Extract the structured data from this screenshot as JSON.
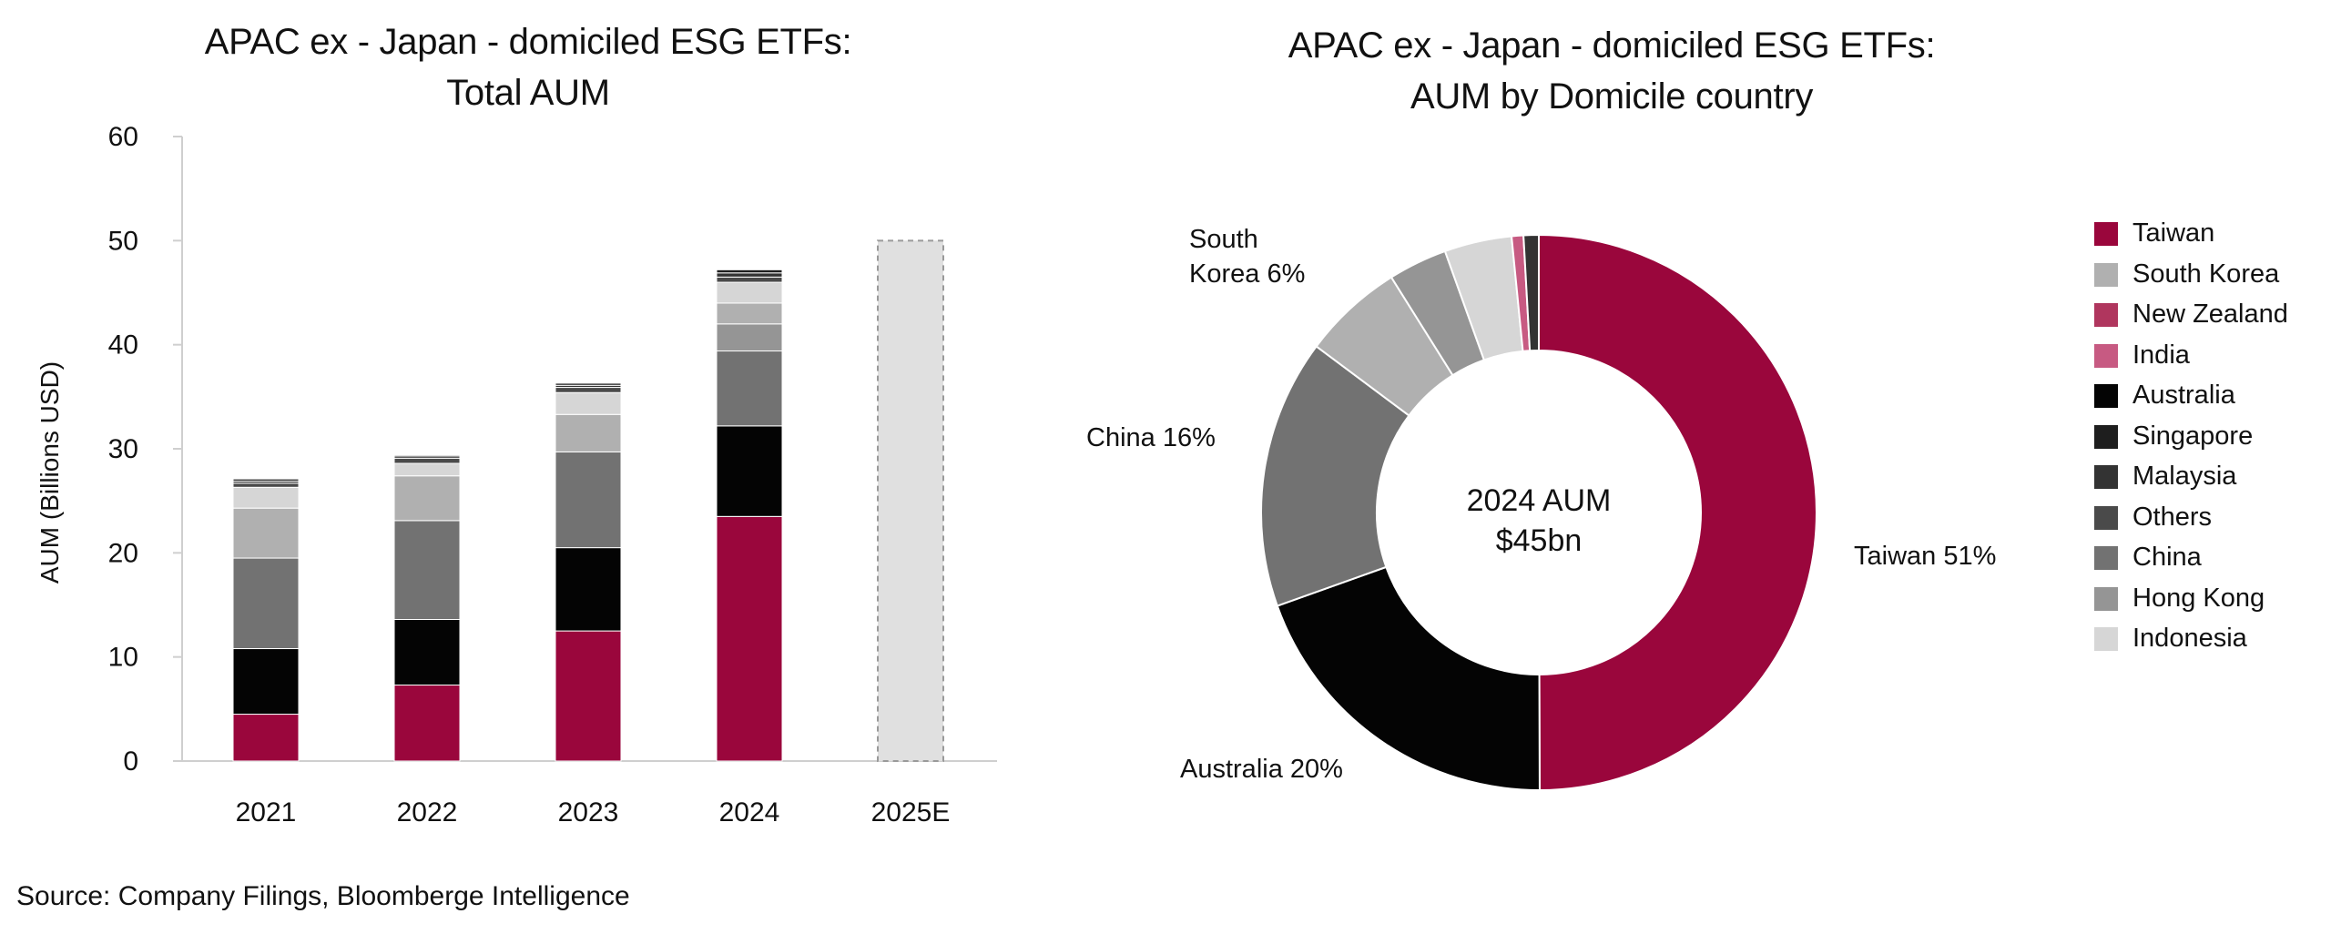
{
  "source": "Source: Company Filings, Bloomberge Intelligence",
  "colors": {
    "Taiwan": "#9a063c",
    "South Korea": "#b0b0b0",
    "New Zealand": "#b0365e",
    "India": "#c75a82",
    "Australia": "#040404",
    "Singapore": "#1e1e1e",
    "Malaysia": "#333333",
    "Others": "#4a4a4a",
    "China": "#727272",
    "Hong Kong": "#959595",
    "Indonesia": "#d6d6d6",
    "estimate": "#e0e0e0"
  },
  "chart_data": [
    {
      "type": "bar",
      "stacked": true,
      "title_lines": [
        "APAC ex - Japan - domiciled ESG ETFs:",
        "Total AUM"
      ],
      "ylabel": "AUM (Billions USD)",
      "xlabel": "",
      "ylim": [
        0,
        60
      ],
      "yticks": [
        0,
        10,
        20,
        30,
        40,
        50,
        60
      ],
      "grid": false,
      "categories": [
        "2021",
        "2022",
        "2023",
        "2024",
        "2025E"
      ],
      "series": [
        {
          "name": "Taiwan",
          "values": [
            4.5,
            7.3,
            12.5,
            23.5,
            null
          ]
        },
        {
          "name": "Australia",
          "values": [
            6.3,
            6.3,
            8.0,
            8.7,
            null
          ]
        },
        {
          "name": "China",
          "values": [
            8.7,
            9.5,
            9.2,
            7.2,
            null
          ]
        },
        {
          "name": "Hong Kong",
          "values": [
            0.0,
            0.0,
            0.0,
            2.6,
            null
          ]
        },
        {
          "name": "South Korea",
          "values": [
            4.8,
            4.3,
            3.6,
            2.0,
            null
          ]
        },
        {
          "name": "Indonesia",
          "values": [
            2.0,
            1.2,
            2.1,
            2.0,
            null
          ]
        },
        {
          "name": "Others",
          "values": [
            0.4,
            0.5,
            0.5,
            0.5,
            null
          ]
        },
        {
          "name": "Malaysia",
          "values": [
            0.2,
            0.2,
            0.2,
            0.4,
            null
          ]
        },
        {
          "name": "Singapore",
          "values": [
            0.2,
            0.1,
            0.2,
            0.3,
            null
          ]
        }
      ],
      "estimate": {
        "category": "2025E",
        "value": 50
      }
    },
    {
      "type": "pie",
      "donut": true,
      "title_lines": [
        "APAC ex - Japan - domiciled ESG ETFs:",
        "AUM by Domicile country"
      ],
      "center_lines": [
        "2024 AUM",
        "$45bn"
      ],
      "legend_position": "right",
      "slices": [
        {
          "name": "Taiwan",
          "value": 51,
          "label": "Taiwan 51%"
        },
        {
          "name": "Australia",
          "value": 20,
          "label": "Australia 20%"
        },
        {
          "name": "China",
          "value": 16,
          "label": "China 16%"
        },
        {
          "name": "South Korea",
          "value": 6,
          "label_lines": [
            "South",
            "Korea 6%"
          ]
        },
        {
          "name": "Hong Kong",
          "value": 3.5,
          "label": ""
        },
        {
          "name": "Indonesia",
          "value": 4,
          "label": ""
        },
        {
          "name": "India",
          "value": 0.7,
          "label": ""
        },
        {
          "name": "Malaysia",
          "value": 0.9,
          "label": ""
        }
      ],
      "legend": [
        "Taiwan",
        "South Korea",
        "New Zealand",
        "India",
        "Australia",
        "Singapore",
        "Malaysia",
        "Others",
        "China",
        "Hong Kong",
        "Indonesia"
      ]
    }
  ]
}
